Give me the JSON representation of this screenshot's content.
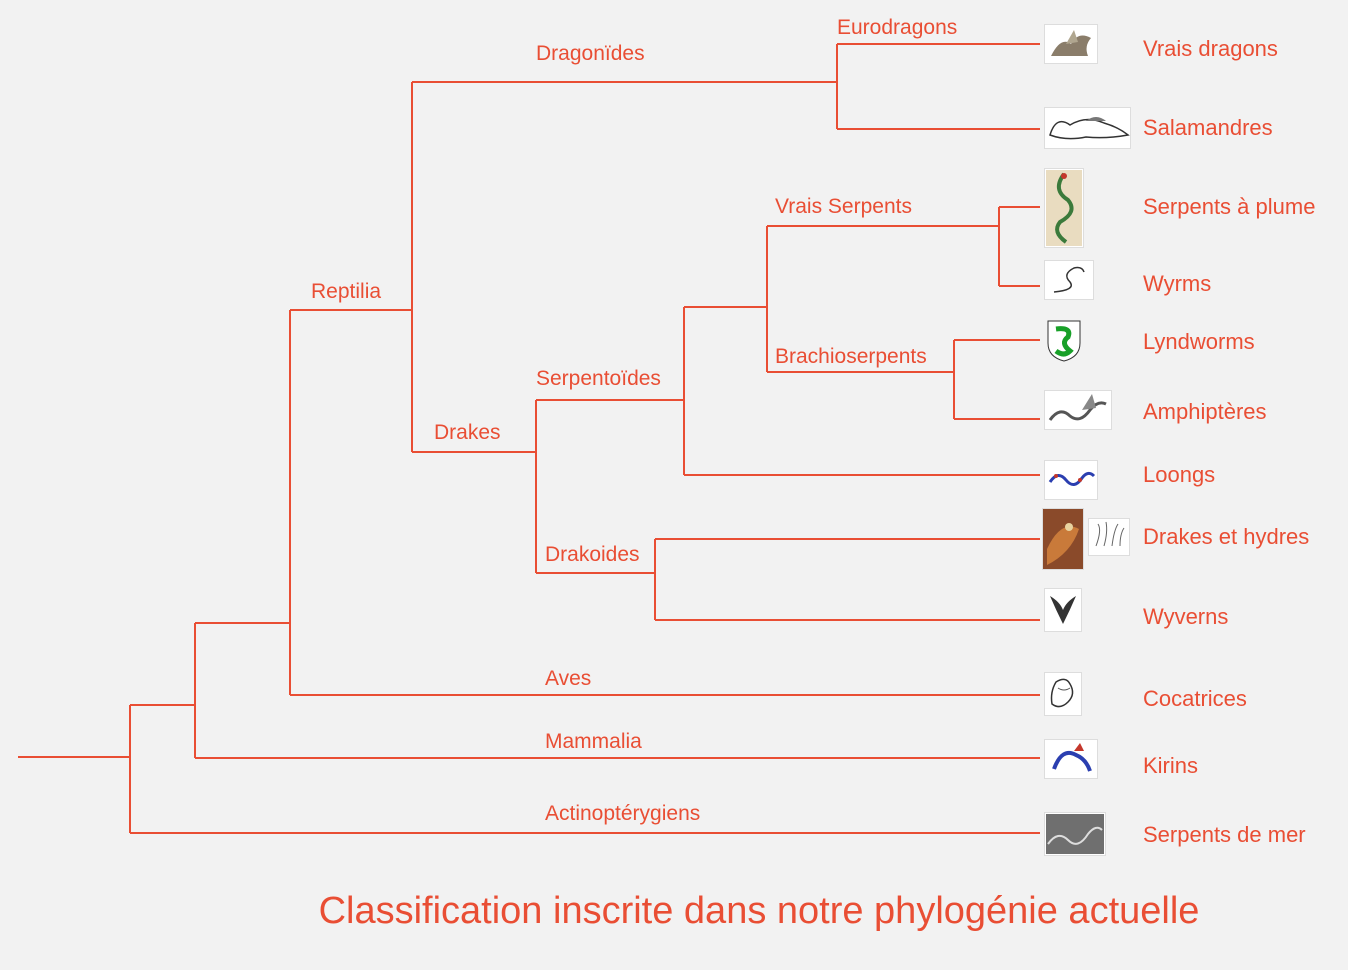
{
  "colors": {
    "line": "#e94e34",
    "text": "#e94e34",
    "background": "#f2f2f2"
  },
  "clades": {
    "dragonoides": "Dragonïdes",
    "eurodragons": "Eurodragons",
    "reptilia": "Reptilia",
    "vrais_serpents": "Vrais Serpents",
    "brachioserpents": "Brachioserpents",
    "serpentoides": "Serpentoïdes",
    "drakes": "Drakes",
    "drakoides": "Drakoides",
    "aves": "Aves",
    "mammalia": "Mammalia",
    "actinopterygiens": "Actinoptérygiens"
  },
  "taxa": {
    "vrais_dragons": "Vrais dragons",
    "salamandres": "Salamandres",
    "serpents_plume": "Serpents à plume",
    "wyrms": "Wyrms",
    "lyndworms": "Lyndworms",
    "amphipteres": "Amphiptères",
    "loongs": "Loongs",
    "drakes_hydres": "Drakes et hydres",
    "wyverns": "Wyverns",
    "cocatrices": "Cocatrices",
    "kirins": "Kirins",
    "serpents_mer": "Serpents de mer"
  },
  "icons": {
    "vrais_dragons": "dragon-engraving-icon",
    "salamandres": "salamander-engraving-icon",
    "serpents_plume": "feathered-serpent-icon",
    "wyrms": "wyrm-sketch-icon",
    "lyndworms": "green-lindworm-shield-icon",
    "amphipteres": "amphiptere-engraving-icon",
    "loongs": "chinese-dragon-icon",
    "drakes_hydres": "drake-painting-icon",
    "hydra": "hydra-sketch-icon",
    "wyverns": "wyvern-engraving-icon",
    "cocatrices": "cockatrice-engraving-icon",
    "kirins": "kirin-icon",
    "serpents_mer": "sea-serpent-engraving-icon"
  },
  "title": "Classification inscrite dans notre phylogénie actuelle"
}
